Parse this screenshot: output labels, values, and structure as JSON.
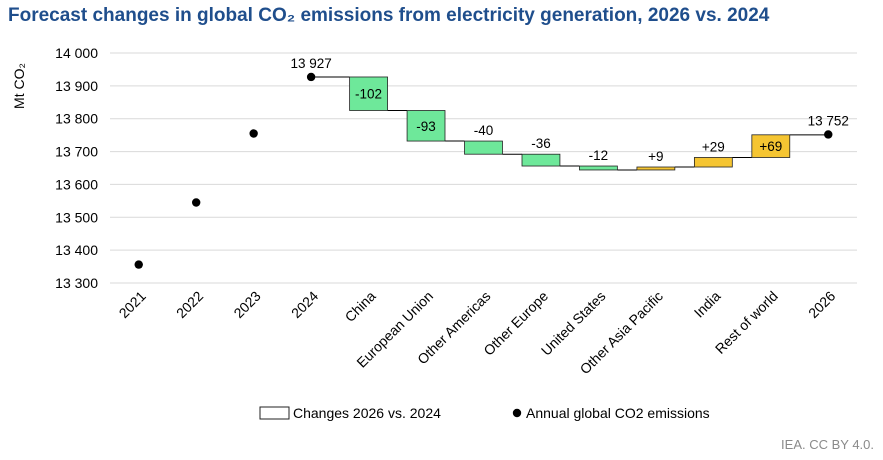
{
  "title": "Forecast changes in global CO₂ emissions from electricity generation, 2026 vs. 2024",
  "credit": "IEA. CC BY 4.0.",
  "colors": {
    "decrease": "#6ee89a",
    "increase": "#f5c532",
    "bar_stroke": "#222222",
    "point": "#000000",
    "grid": "#d9d9d9",
    "title": "#1f4e8c"
  },
  "chart_data": {
    "type": "bar",
    "subtype": "waterfall",
    "ylabel": "Mt CO₂",
    "ylim": [
      13300,
      14000
    ],
    "yticks": [
      13300,
      13400,
      13500,
      13600,
      13700,
      13800,
      13900,
      14000
    ],
    "ytick_labels": [
      "13 300",
      "13 400",
      "13 500",
      "13 600",
      "13 700",
      "13 800",
      "13 900",
      "14 000"
    ],
    "grid": "horizontal",
    "legend_position": "bottom",
    "categories": [
      "2021",
      "2022",
      "2023",
      "2024",
      "China",
      "European Union",
      "Other Americas",
      "Other Europe",
      "United States",
      "Other Asia Pacific",
      "India",
      "Rest of world",
      "2026"
    ],
    "annual_points": [
      {
        "category": "2021",
        "value": 13356
      },
      {
        "category": "2022",
        "value": 13545
      },
      {
        "category": "2023",
        "value": 13755
      },
      {
        "category": "2024",
        "value": 13927,
        "label": "13 927"
      },
      {
        "category": "2026",
        "value": 13752,
        "label": "13 752"
      }
    ],
    "changes": [
      {
        "category": "China",
        "value": -102,
        "label": "-102"
      },
      {
        "category": "European Union",
        "value": -93,
        "label": "-93"
      },
      {
        "category": "Other Americas",
        "value": -40,
        "label": "-40"
      },
      {
        "category": "Other Europe",
        "value": -36,
        "label": "-36"
      },
      {
        "category": "United States",
        "value": -12,
        "label": "-12"
      },
      {
        "category": "Other Asia Pacific",
        "value": 9,
        "label": "+9"
      },
      {
        "category": "India",
        "value": 29,
        "label": "+29"
      },
      {
        "category": "Rest of world",
        "value": 69,
        "label": "+69"
      }
    ],
    "legend": [
      {
        "label": "Changes 2026 vs. 2024",
        "symbol": "box"
      },
      {
        "label": "Annual global CO2 emissions",
        "symbol": "dot"
      }
    ]
  }
}
